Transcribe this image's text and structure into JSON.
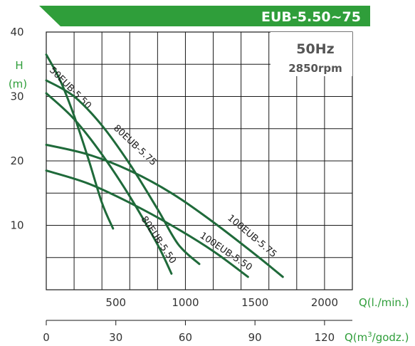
{
  "chart_data": {
    "type": "line",
    "title": "EUB-5.50~75",
    "annotations": [
      "50Hz",
      "2850rpm"
    ],
    "y_axis": {
      "label_line1": "H",
      "label_line2": "(m)",
      "ticks": [
        10,
        20,
        30,
        40
      ],
      "range": [
        0,
        40
      ],
      "grid_step": 5
    },
    "x_axis_primary": {
      "label": "Q(l./min.)",
      "ticks": [
        500,
        1000,
        1500,
        2000
      ],
      "range": [
        0,
        2200
      ],
      "grid_step": 200
    },
    "x_axis_secondary": {
      "label_prefix": "Q(m",
      "label_sup": "3",
      "label_suffix": "/godz.)",
      "ticks": [
        0,
        30,
        60,
        90,
        120
      ],
      "conversion_lpm_per_unit": 16.6667
    },
    "grid": true,
    "series": [
      {
        "name": "50EUB-5.50",
        "x": [
          0,
          100,
          200,
          300,
          400,
          480
        ],
        "y": [
          36.5,
          32.5,
          27.0,
          20.5,
          13.5,
          9.5
        ]
      },
      {
        "name": "80EUB-5.75",
        "x": [
          0,
          200,
          400,
          600,
          800,
          950,
          1100
        ],
        "y": [
          32.5,
          30.0,
          25.5,
          19.5,
          12.5,
          7.0,
          4.0
        ]
      },
      {
        "name": "80EUB-5.50",
        "x": [
          0,
          200,
          400,
          600,
          800,
          900
        ],
        "y": [
          30.5,
          26.5,
          21.0,
          14.5,
          7.0,
          2.5
        ]
      },
      {
        "name": "100EUB-5.75",
        "x": [
          0,
          300,
          600,
          900,
          1200,
          1500,
          1700
        ],
        "y": [
          22.5,
          21.0,
          18.5,
          15.0,
          10.5,
          5.5,
          2.0
        ]
      },
      {
        "name": "100EUB-5.50",
        "x": [
          0,
          300,
          600,
          900,
          1200,
          1450
        ],
        "y": [
          18.5,
          16.5,
          13.5,
          10.0,
          6.0,
          2.0
        ]
      }
    ]
  }
}
